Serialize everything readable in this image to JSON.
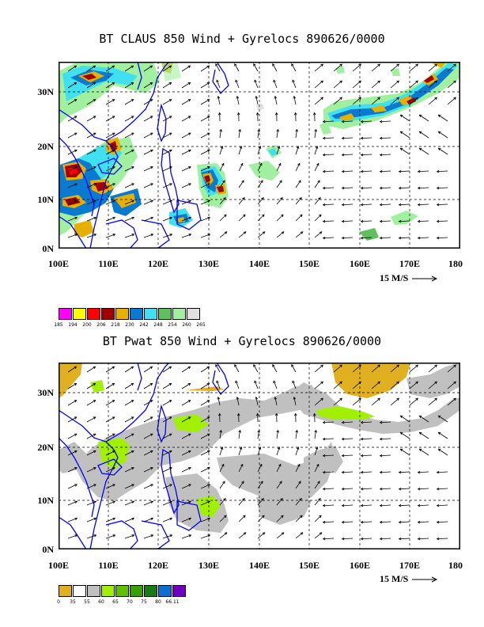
{
  "panel1": {
    "title": "BT CLAUS 850 Wind + Gyrelocs 890626/0000",
    "lat_labels": [
      "30N",
      "20N",
      "10N",
      "0N"
    ],
    "lon_labels": [
      "100E",
      "110E",
      "120E",
      "130E",
      "140E",
      "150E",
      "160E",
      "170E",
      "180"
    ],
    "vector_scale": "15 M/S",
    "legend": {
      "colors": [
        "#ff00ff",
        "#ffff00",
        "#ff0000",
        "#a00000",
        "#e6b000",
        "#0a7ad0",
        "#40e0f0",
        "#60c060",
        "#a0f0a0",
        "#e0e0e0"
      ],
      "labels": [
        "185",
        "194",
        "200",
        "206",
        "218",
        "230",
        "242",
        "248",
        "254",
        "260",
        "265"
      ]
    }
  },
  "panel2": {
    "title": "BT Pwat 850 Wind + Gyrelocs 890626/0000",
    "lat_labels": [
      "30N",
      "20N",
      "10N",
      "0N"
    ],
    "lon_labels": [
      "100E",
      "110E",
      "120E",
      "130E",
      "140E",
      "150E",
      "160E",
      "170E",
      "180"
    ],
    "vector_scale": "15 M/S",
    "legend": {
      "colors": [
        "#e0b020",
        "#ffffff",
        "#c0c0c0",
        "#a0f000",
        "#60c000",
        "#38a000",
        "#1a7a1a",
        "#0a70d0",
        "#7000c0"
      ],
      "labels": [
        "0",
        "35",
        "55",
        "60",
        "65",
        "70",
        "75",
        "80",
        "66.11"
      ]
    }
  }
}
